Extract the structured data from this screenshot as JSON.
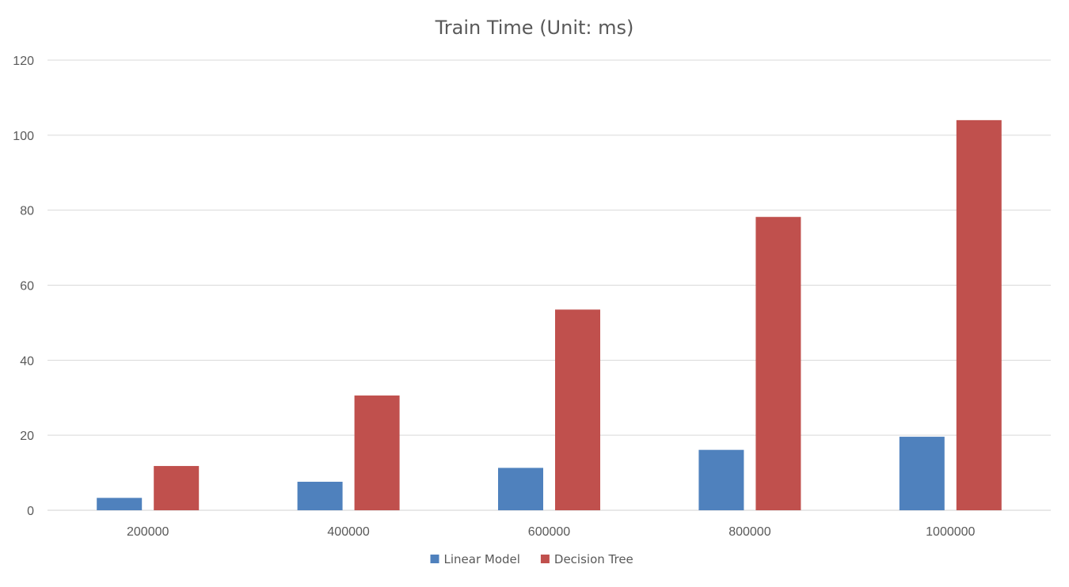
{
  "chart_data": {
    "type": "bar",
    "title": "Train Time (Unit: ms)",
    "xlabel": "",
    "ylabel": "",
    "categories": [
      "200000",
      "400000",
      "600000",
      "800000",
      "1000000"
    ],
    "series": [
      {
        "name": "Linear Model",
        "color": "#4f81bd",
        "values": [
          3.3,
          7.6,
          11.3,
          16.1,
          19.6
        ]
      },
      {
        "name": "Decision Tree",
        "color": "#c0504d",
        "values": [
          11.8,
          30.6,
          53.5,
          78.2,
          104.0
        ]
      }
    ],
    "ylim": [
      0,
      120
    ],
    "yticks": [
      "0",
      "20",
      "40",
      "60",
      "80",
      "100",
      "120"
    ],
    "grid": true,
    "legend_position": "bottom"
  }
}
